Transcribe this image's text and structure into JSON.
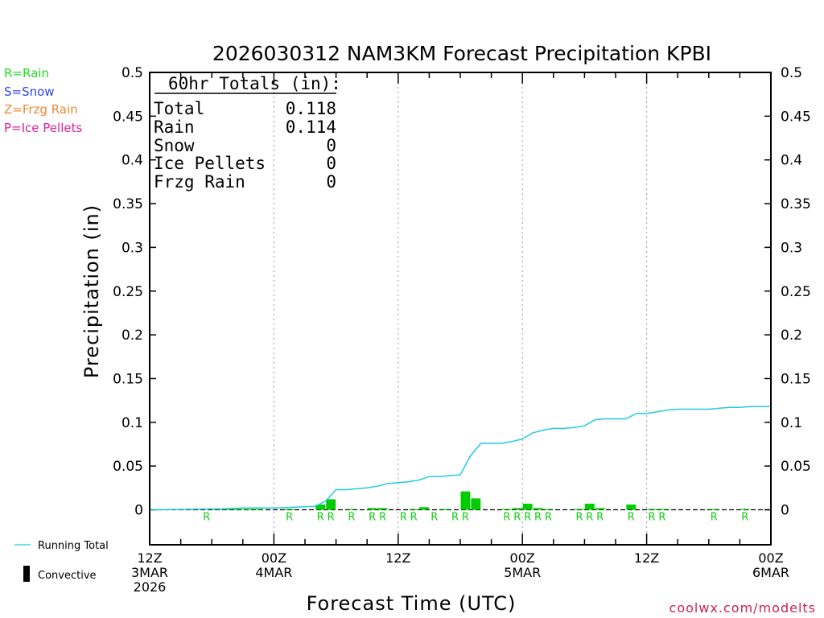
{
  "chart_data": {
    "type": "bar",
    "title": "2026030312 NAM3KM Forecast Precipitation KPBI",
    "xlabel": "Forecast Time (UTC)",
    "ylabel": "Precipitation (in)",
    "ylim": [
      -0.04,
      0.5
    ],
    "xlim_hours": [
      0,
      60
    ],
    "yticks": [
      0,
      0.05,
      0.1,
      0.15,
      0.2,
      0.25,
      0.3,
      0.35,
      0.4,
      0.45,
      0.5
    ],
    "ytick_labels": [
      "0",
      "0.05",
      "0.1",
      "0.15",
      "0.2",
      "0.25",
      "0.3",
      "0.35",
      "0.4",
      "0.45",
      "0.5"
    ],
    "xticks": [
      {
        "hour": 0,
        "lines": [
          "12Z",
          "3MAR",
          "2026"
        ]
      },
      {
        "hour": 12,
        "lines": [
          "00Z",
          "4MAR"
        ]
      },
      {
        "hour": 24,
        "lines": [
          "12Z"
        ]
      },
      {
        "hour": 36,
        "lines": [
          "00Z",
          "5MAR"
        ]
      },
      {
        "hour": 48,
        "lines": [
          "12Z"
        ]
      },
      {
        "hour": 60,
        "lines": [
          "00Z",
          "6MAR"
        ]
      }
    ],
    "totals": {
      "header": "60hr Totals (in):",
      "rows": [
        {
          "label": "Total",
          "value": "0.118"
        },
        {
          "label": "Rain",
          "value": "0.114"
        },
        {
          "label": "Snow",
          "value": "0"
        },
        {
          "label": "Ice Pellets",
          "value": "0"
        },
        {
          "label": "Frzg Rain",
          "value": "0"
        }
      ]
    },
    "precip_type_legend": [
      {
        "text": "R=Rain",
        "color": "#22dd22"
      },
      {
        "text": "S=Snow",
        "color": "#3344ee"
      },
      {
        "text": "Z=Frzg Rain",
        "color": "#ee8833"
      },
      {
        "text": "P=Ice Pellets",
        "color": "#dd2299"
      }
    ],
    "series_legend": [
      {
        "text": "Running Total",
        "color": "#22ccdd",
        "kind": "line"
      },
      {
        "text": "Convective",
        "color": "#000000",
        "kind": "bar"
      }
    ],
    "hourly_precip": {
      "name": "Hourly Precipitation",
      "color": "#00cc00",
      "points": [
        {
          "hour": 7,
          "value": 0.001
        },
        {
          "hour": 8,
          "value": 0.001
        },
        {
          "hour": 9,
          "value": 0.001
        },
        {
          "hour": 10,
          "value": 0.001
        },
        {
          "hour": 11,
          "value": 0.001
        },
        {
          "hour": 14,
          "value": 0.001
        },
        {
          "hour": 17,
          "value": 0.006
        },
        {
          "hour": 18,
          "value": 0.012
        },
        {
          "hour": 20,
          "value": 0.001
        },
        {
          "hour": 22,
          "value": 0.002
        },
        {
          "hour": 23,
          "value": 0.002
        },
        {
          "hour": 26,
          "value": 0.001
        },
        {
          "hour": 27,
          "value": 0.003
        },
        {
          "hour": 29,
          "value": 0.001
        },
        {
          "hour": 31,
          "value": 0.021
        },
        {
          "hour": 32,
          "value": 0.013
        },
        {
          "hour": 35,
          "value": 0.001
        },
        {
          "hour": 36,
          "value": 0.002
        },
        {
          "hour": 37,
          "value": 0.007
        },
        {
          "hour": 38,
          "value": 0.002
        },
        {
          "hour": 39,
          "value": 0.001
        },
        {
          "hour": 42,
          "value": 0.001
        },
        {
          "hour": 43,
          "value": 0.007
        },
        {
          "hour": 44,
          "value": 0.002
        },
        {
          "hour": 47,
          "value": 0.006
        },
        {
          "hour": 49,
          "value": 0.001
        },
        {
          "hour": 50,
          "value": 0.001
        },
        {
          "hour": 55,
          "value": 0.001
        },
        {
          "hour": 58,
          "value": 0.001
        }
      ]
    },
    "running_total": {
      "name": "Running Total",
      "color": "#22ccdd",
      "points": [
        {
          "hour": 0,
          "value": 0
        },
        {
          "hour": 7,
          "value": 0.001
        },
        {
          "hour": 9,
          "value": 0.002
        },
        {
          "hour": 12,
          "value": 0.002
        },
        {
          "hour": 14,
          "value": 0.003
        },
        {
          "hour": 16,
          "value": 0.004
        },
        {
          "hour": 17,
          "value": 0.01
        },
        {
          "hour": 18,
          "value": 0.023
        },
        {
          "hour": 19,
          "value": 0.023
        },
        {
          "hour": 20,
          "value": 0.024
        },
        {
          "hour": 21,
          "value": 0.025
        },
        {
          "hour": 22,
          "value": 0.027
        },
        {
          "hour": 23,
          "value": 0.03
        },
        {
          "hour": 24,
          "value": 0.031
        },
        {
          "hour": 25,
          "value": 0.032
        },
        {
          "hour": 26,
          "value": 0.034
        },
        {
          "hour": 27,
          "value": 0.038
        },
        {
          "hour": 28,
          "value": 0.038
        },
        {
          "hour": 29,
          "value": 0.039
        },
        {
          "hour": 30,
          "value": 0.04
        },
        {
          "hour": 31,
          "value": 0.062
        },
        {
          "hour": 32,
          "value": 0.076
        },
        {
          "hour": 33,
          "value": 0.076
        },
        {
          "hour": 34,
          "value": 0.076
        },
        {
          "hour": 35,
          "value": 0.078
        },
        {
          "hour": 36,
          "value": 0.081
        },
        {
          "hour": 37,
          "value": 0.088
        },
        {
          "hour": 38,
          "value": 0.091
        },
        {
          "hour": 39,
          "value": 0.093
        },
        {
          "hour": 40,
          "value": 0.093
        },
        {
          "hour": 41,
          "value": 0.094
        },
        {
          "hour": 42,
          "value": 0.096
        },
        {
          "hour": 43,
          "value": 0.103
        },
        {
          "hour": 44,
          "value": 0.104
        },
        {
          "hour": 45,
          "value": 0.104
        },
        {
          "hour": 46,
          "value": 0.104
        },
        {
          "hour": 47,
          "value": 0.11
        },
        {
          "hour": 48,
          "value": 0.11
        },
        {
          "hour": 49,
          "value": 0.112
        },
        {
          "hour": 50,
          "value": 0.114
        },
        {
          "hour": 51,
          "value": 0.115
        },
        {
          "hour": 52,
          "value": 0.115
        },
        {
          "hour": 53,
          "value": 0.115
        },
        {
          "hour": 54,
          "value": 0.115
        },
        {
          "hour": 55,
          "value": 0.116
        },
        {
          "hour": 56,
          "value": 0.117
        },
        {
          "hour": 57,
          "value": 0.117
        },
        {
          "hour": 58,
          "value": 0.118
        },
        {
          "hour": 59,
          "value": 0.118
        },
        {
          "hour": 60,
          "value": 0.118
        }
      ]
    },
    "precip_type_marks": {
      "symbol": "R",
      "hours": [
        6,
        14,
        17,
        18,
        20,
        22,
        23,
        25,
        26,
        28,
        30,
        31,
        35,
        36,
        37,
        38,
        39,
        42,
        43,
        44,
        47,
        49,
        50,
        55,
        58
      ]
    }
  },
  "credit": "coolwx.com/modelts"
}
